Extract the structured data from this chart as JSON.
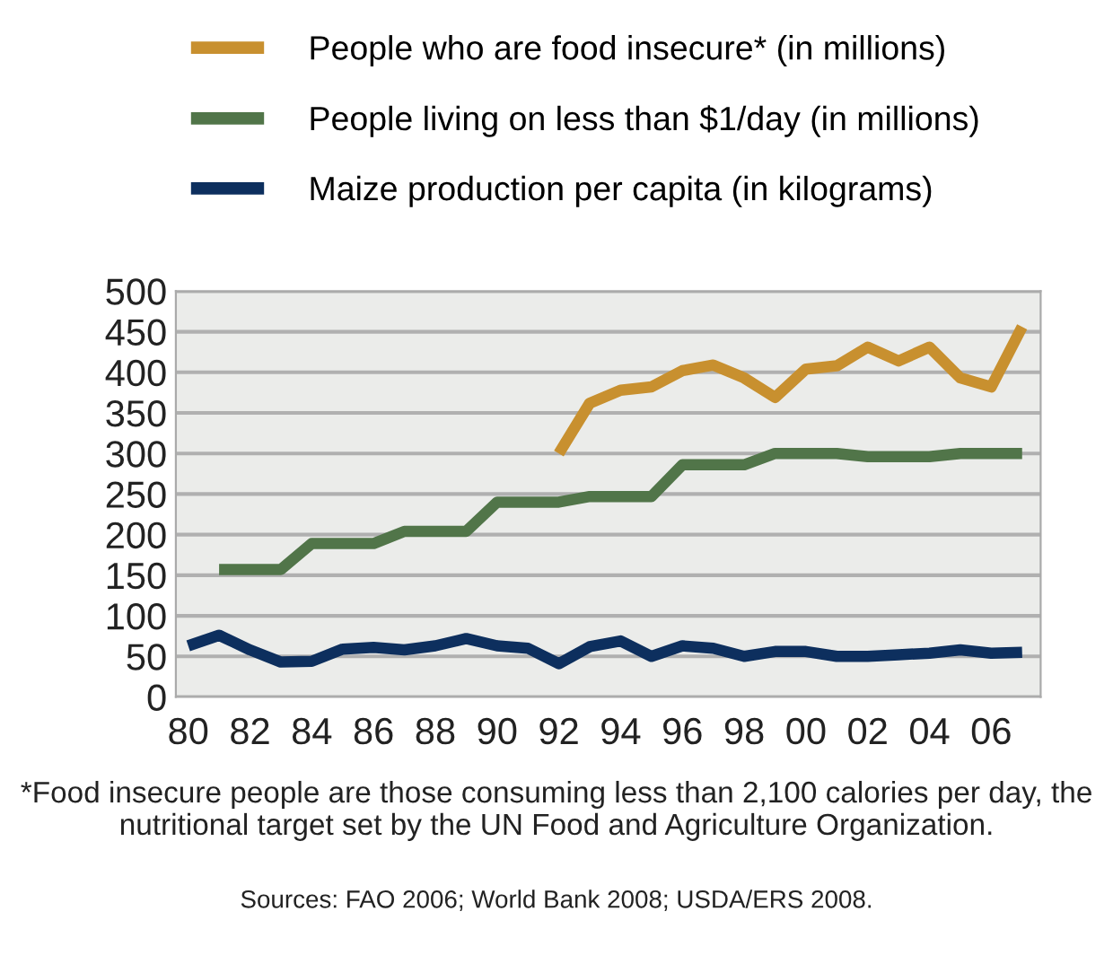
{
  "chart_data": {
    "type": "line",
    "x": [
      1980,
      1981,
      1982,
      1983,
      1984,
      1985,
      1986,
      1987,
      1988,
      1989,
      1990,
      1991,
      1992,
      1993,
      1994,
      1995,
      1996,
      1997,
      1998,
      1999,
      2000,
      2001,
      2002,
      2003,
      2004,
      2005,
      2006,
      2007
    ],
    "series": [
      {
        "name": "People who are food insecure* (in millions)",
        "color": "#c8902f",
        "values": [
          null,
          null,
          null,
          null,
          null,
          null,
          null,
          null,
          null,
          null,
          null,
          null,
          300,
          362,
          378,
          382,
          402,
          409,
          393,
          369,
          404,
          408,
          431,
          414,
          431,
          393,
          382,
          456
        ]
      },
      {
        "name": "People living on less than $1/day (in millions)",
        "color": "#517549",
        "values": [
          null,
          157,
          157,
          157,
          189,
          189,
          189,
          204,
          204,
          204,
          240,
          240,
          240,
          247,
          247,
          247,
          286,
          286,
          286,
          300,
          300,
          300,
          296,
          296,
          296,
          300,
          300,
          300
        ]
      },
      {
        "name": "Maize production per capita (in kilograms)",
        "color": "#0d2f5e",
        "values": [
          63,
          76,
          58,
          43,
          44,
          59,
          61,
          58,
          63,
          72,
          63,
          60,
          41,
          62,
          69,
          50,
          63,
          60,
          50,
          56,
          56,
          50,
          50,
          52,
          54,
          58,
          54,
          55
        ]
      }
    ],
    "xlim": [
      1979.6,
      2007.6
    ],
    "xticks": [
      {
        "value": 1980,
        "label": "80"
      },
      {
        "value": 1982,
        "label": "82"
      },
      {
        "value": 1984,
        "label": "84"
      },
      {
        "value": 1986,
        "label": "86"
      },
      {
        "value": 1988,
        "label": "88"
      },
      {
        "value": 1990,
        "label": "90"
      },
      {
        "value": 1992,
        "label": "92"
      },
      {
        "value": 1994,
        "label": "94"
      },
      {
        "value": 1996,
        "label": "96"
      },
      {
        "value": 1998,
        "label": "98"
      },
      {
        "value": 2000,
        "label": "00"
      },
      {
        "value": 2002,
        "label": "02"
      },
      {
        "value": 2004,
        "label": "04"
      },
      {
        "value": 2006,
        "label": "06"
      }
    ],
    "ylim": [
      0,
      500
    ],
    "yticks": [
      0,
      50,
      100,
      150,
      200,
      250,
      300,
      350,
      400,
      450,
      500
    ],
    "grid": "y",
    "legend": "top",
    "marker": "none",
    "line_style": "solid",
    "annotations": [
      "*Food insecure people are those consuming less than 2,100 calories per day, the nutritional target set by the UN Food and Agriculture Organization.",
      "Sources: FAO 2006; World Bank 2008; USDA/ERS 2008."
    ]
  }
}
